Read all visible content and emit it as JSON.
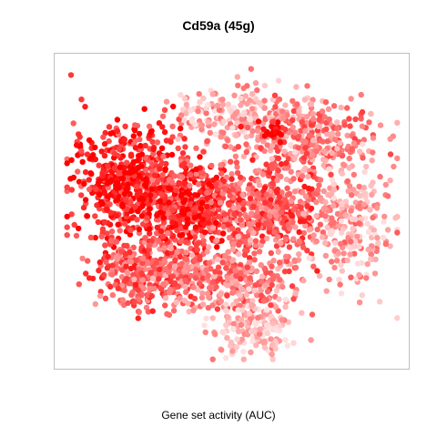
{
  "chart_data": {
    "type": "scatter",
    "title": "Cd59a (45g)",
    "xlabel": "Gene set activity (AUC)",
    "ylabel": "",
    "axes_visible": false,
    "grid": false,
    "legend": "none",
    "color_low": "#ffe0e0",
    "color_high": "#ff0000",
    "xlim": [
      0,
      100
    ],
    "ylim": [
      0,
      100
    ],
    "clusters": [
      {
        "name": "top",
        "x": 52,
        "y": 82,
        "sx": 10,
        "sy": 5,
        "intensity": 0.25,
        "n": 220
      },
      {
        "name": "top-right",
        "x": 72,
        "y": 73,
        "sx": 10,
        "sy": 7,
        "intensity": 0.45,
        "n": 300
      },
      {
        "name": "left",
        "x": 20,
        "y": 60,
        "sx": 9,
        "sy": 10,
        "intensity": 0.8,
        "n": 520
      },
      {
        "name": "center",
        "x": 40,
        "y": 52,
        "sx": 9,
        "sy": 8,
        "intensity": 0.7,
        "n": 420
      },
      {
        "name": "center-right",
        "x": 62,
        "y": 50,
        "sx": 9,
        "sy": 7,
        "intensity": 0.6,
        "n": 380
      },
      {
        "name": "far-right",
        "x": 85,
        "y": 45,
        "sx": 6,
        "sy": 10,
        "intensity": 0.3,
        "n": 230
      },
      {
        "name": "bottom-left",
        "x": 25,
        "y": 30,
        "sx": 8,
        "sy": 6,
        "intensity": 0.6,
        "n": 330
      },
      {
        "name": "bottom-center",
        "x": 50,
        "y": 28,
        "sx": 10,
        "sy": 6,
        "intensity": 0.45,
        "n": 330
      },
      {
        "name": "bottom",
        "x": 58,
        "y": 12,
        "sx": 6,
        "sy": 5,
        "intensity": 0.15,
        "n": 170
      }
    ],
    "hotspots": [
      {
        "x": 62,
        "y": 77,
        "sx": 2,
        "sy": 2,
        "intensity": 1.0,
        "n": 25
      },
      {
        "x": 18,
        "y": 58,
        "sx": 5,
        "sy": 4,
        "intensity": 1.0,
        "n": 90
      },
      {
        "x": 35,
        "y": 49,
        "sx": 5,
        "sy": 4,
        "intensity": 0.95,
        "n": 70
      }
    ]
  }
}
